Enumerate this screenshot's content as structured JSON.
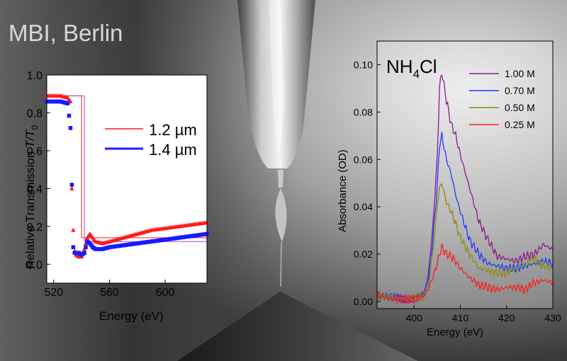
{
  "overlay_title": "MBI, Berlin",
  "colors": {
    "red": "#ff1a1a",
    "blue": "#1a1aff",
    "purple": "#8b1a8b",
    "olive": "#8c8c10",
    "conc_blue": "#1a3cff",
    "conc_red": "#ff1a1a"
  },
  "chart_data": [
    {
      "type": "scatter",
      "xlabel": "Energy (eV)",
      "ylabel_text": "Relative Transmission ",
      "ylabel_italic": "T/T",
      "ylabel_sub": "0",
      "xlim": [
        515,
        630
      ],
      "ylim": [
        -0.1,
        1.0
      ],
      "xticks": [
        520,
        560,
        600
      ],
      "yticks": [
        0.0,
        0.2,
        0.4,
        0.6,
        0.8,
        1.0
      ],
      "ytick_labels": [
        "0.0",
        "0.2",
        "0.4",
        "0.6",
        "0.8",
        "1.0"
      ],
      "legend_position": "upper-right",
      "series": [
        {
          "name": "1.2 µm",
          "color": "#ff1a1a",
          "marker": "triangle",
          "x": [
            515,
            520,
            525,
            530,
            532,
            533,
            534,
            535,
            536,
            538,
            540,
            542,
            544,
            546,
            548,
            550,
            555,
            560,
            570,
            580,
            590,
            600,
            610,
            620,
            630
          ],
          "y": [
            0.89,
            0.89,
            0.89,
            0.88,
            0.86,
            0.4,
            0.18,
            0.07,
            0.05,
            0.04,
            0.04,
            0.08,
            0.14,
            0.16,
            0.14,
            0.12,
            0.11,
            0.12,
            0.14,
            0.16,
            0.18,
            0.19,
            0.2,
            0.21,
            0.22
          ]
        },
        {
          "name": "1.4 µm",
          "color": "#1a1aff",
          "marker": "square",
          "x": [
            515,
            520,
            525,
            530,
            532,
            533,
            534,
            535,
            536,
            538,
            540,
            542,
            544,
            546,
            548,
            550,
            555,
            560,
            570,
            580,
            590,
            600,
            610,
            620,
            630
          ],
          "y": [
            0.86,
            0.86,
            0.86,
            0.85,
            0.72,
            0.42,
            0.09,
            0.06,
            0.06,
            0.06,
            0.05,
            0.06,
            0.12,
            0.11,
            0.09,
            0.08,
            0.08,
            0.09,
            0.1,
            0.11,
            0.12,
            0.13,
            0.14,
            0.15,
            0.16
          ]
        }
      ],
      "step_curves": [
        {
          "color": "#ff1a1a",
          "x": [
            515,
            540,
            540,
            630
          ],
          "y": [
            0.89,
            0.89,
            0.14,
            0.14
          ]
        },
        {
          "color": "#9a4fd0",
          "x": [
            515,
            542,
            542,
            630
          ],
          "y": [
            0.89,
            0.89,
            0.12,
            0.12
          ]
        }
      ]
    },
    {
      "type": "line",
      "title_main": "NH",
      "title_sub": "4",
      "title_tail": "Cl",
      "xlabel": "Energy (eV)",
      "ylabel": "Absorbance (OD)",
      "xlim": [
        392,
        430
      ],
      "ylim": [
        -0.003,
        0.11
      ],
      "xticks": [
        400,
        410,
        420,
        430
      ],
      "yticks": [
        0.0,
        0.02,
        0.04,
        0.06,
        0.08,
        0.1
      ],
      "ytick_labels": [
        "0.00",
        "0.02",
        "0.04",
        "0.06",
        "0.08",
        "0.10"
      ],
      "legend_position": "upper-right",
      "series": [
        {
          "name": "1.00 M",
          "color": "#8b1a8b",
          "x": [
            392,
            395,
            398,
            400,
            402,
            403,
            404,
            405,
            405.5,
            406,
            407,
            408,
            409,
            410,
            412,
            414,
            416,
            418,
            420,
            422,
            424,
            426,
            428,
            429,
            430
          ],
          "y": [
            0.003,
            0.002,
            0.001,
            0.001,
            0.003,
            0.01,
            0.03,
            0.06,
            0.09,
            0.097,
            0.085,
            0.075,
            0.07,
            0.062,
            0.048,
            0.034,
            0.026,
            0.019,
            0.018,
            0.017,
            0.019,
            0.02,
            0.024,
            0.023,
            0.022
          ]
        },
        {
          "name": "0.70 M",
          "color": "#1a3cff",
          "x": [
            392,
            395,
            398,
            400,
            402,
            403,
            404,
            405,
            405.5,
            406,
            407,
            408,
            409,
            410,
            412,
            414,
            416,
            418,
            420,
            422,
            424,
            426,
            428,
            430
          ],
          "y": [
            0.002,
            0.002,
            0.001,
            0.002,
            0.003,
            0.008,
            0.025,
            0.048,
            0.066,
            0.07,
            0.06,
            0.054,
            0.045,
            0.038,
            0.026,
            0.02,
            0.016,
            0.015,
            0.014,
            0.014,
            0.015,
            0.016,
            0.017,
            0.016
          ]
        },
        {
          "name": "0.50 M",
          "color": "#8c8c10",
          "x": [
            392,
            395,
            398,
            400,
            402,
            403,
            404,
            405,
            405.5,
            406,
            407,
            408,
            409,
            410,
            412,
            414,
            416,
            418,
            420,
            422,
            424,
            426,
            428,
            430
          ],
          "y": [
            0.002,
            0.002,
            0.001,
            0.002,
            0.002,
            0.006,
            0.02,
            0.04,
            0.048,
            0.05,
            0.042,
            0.038,
            0.033,
            0.027,
            0.02,
            0.014,
            0.013,
            0.012,
            0.012,
            0.014,
            0.016,
            0.018,
            0.015,
            0.014
          ]
        },
        {
          "name": "0.25 M",
          "color": "#ff1a1a",
          "x": [
            392,
            395,
            398,
            400,
            402,
            403,
            404,
            405,
            405.5,
            406,
            407,
            408,
            409,
            410,
            412,
            414,
            416,
            418,
            420,
            422,
            424,
            426,
            428,
            430
          ],
          "y": [
            0.003,
            0.001,
            0.001,
            0.001,
            0.002,
            0.005,
            0.01,
            0.016,
            0.02,
            0.023,
            0.02,
            0.019,
            0.017,
            0.014,
            0.01,
            0.007,
            0.006,
            0.005,
            0.006,
            0.006,
            0.005,
            0.008,
            0.009,
            0.008
          ]
        }
      ]
    }
  ]
}
